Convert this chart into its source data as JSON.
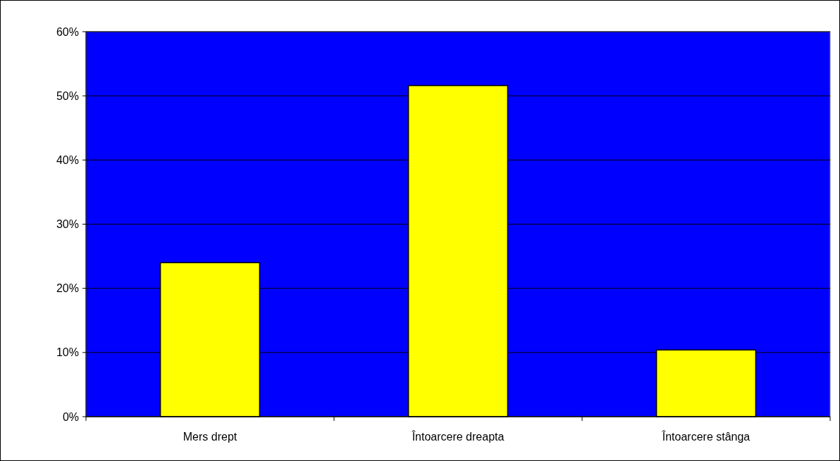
{
  "chart_data": {
    "type": "bar",
    "categories": [
      "Mers drept",
      "Întoarcere dreapta",
      "Întoarcere stânga"
    ],
    "values": [
      24.0,
      51.6,
      10.4
    ],
    "color": "#ffff00",
    "ylim": [
      0,
      60
    ],
    "yticks": [
      {
        "value": 0,
        "label": "0%"
      },
      {
        "value": 10,
        "label": "10%"
      },
      {
        "value": 20,
        "label": "20%"
      },
      {
        "value": 30,
        "label": "30%"
      },
      {
        "value": 40,
        "label": "40%"
      },
      {
        "value": 50,
        "label": "50%"
      },
      {
        "value": 60,
        "label": "60%"
      }
    ],
    "grid": "y"
  }
}
